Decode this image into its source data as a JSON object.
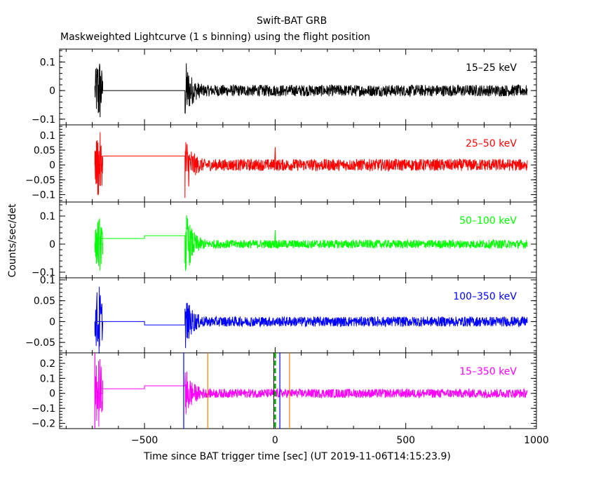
{
  "header": {
    "title": "Swift-BAT GRB",
    "subtitle": "Maskweighted Lightcurve (1 s binning) using the flight position"
  },
  "axes": {
    "ylabel": "Counts/sec/det",
    "xlabel": "Time since BAT trigger time [sec] (UT 2019-11-06T14:15:23.9)"
  },
  "colors": {
    "black": "#000000",
    "red": "#ff0000",
    "green": "#00ff00",
    "blue": "#0000ff",
    "magenta": "#ff00ff",
    "orange": "#ff8000",
    "dashed": "#00aa00"
  },
  "chart_data": {
    "type": "line",
    "binning_sec": 1,
    "xlim": [
      -825,
      1000
    ],
    "x_ticks": [
      -500,
      0,
      500,
      1000
    ],
    "x_tick_labels": [
      "−500",
      "0",
      "500",
      "1000"
    ],
    "grid": false,
    "panels": [
      {
        "name": "15–25 keV",
        "color": "#000000",
        "ylim": [
          -0.12,
          0.145
        ],
        "y_ticks": [
          -0.1,
          0,
          0.1
        ],
        "y_tick_labels": [
          "−0.1",
          "0",
          "0.1"
        ],
        "series": {
          "start": -770,
          "end": 965,
          "baseline": [
            [
              -770,
              0
            ],
            [
              -680,
              0
            ],
            [
              -345,
              0
            ]
          ],
          "burst1": {
            "t0": -690,
            "t1": -660,
            "amp": 0.13
          },
          "onset": -345,
          "peak_amp": 0.12,
          "decay_to": 0.015,
          "noise_amp": 0.02
        }
      },
      {
        "name": "25–50 keV",
        "color": "#ff0000",
        "ylim": [
          -0.125,
          0.135
        ],
        "y_ticks": [
          -0.1,
          -0.05,
          0,
          0.05,
          0.1
        ],
        "y_tick_labels": [
          "−0.1",
          "−0.05",
          "0",
          "0.05",
          "0.1"
        ],
        "series": {
          "start": -770,
          "end": 965,
          "baseline": [
            [
              -770,
              0
            ],
            [
              -680,
              0.03
            ],
            [
              -500,
              0.03
            ],
            [
              -345,
              0.03
            ]
          ],
          "burst1": {
            "t0": -690,
            "t1": -660,
            "amp": 0.12
          },
          "onset": -345,
          "peak_amp": 0.12,
          "decay_to": 0.015,
          "noise_amp": 0.02,
          "spike": {
            "t": 0,
            "value": 0.06
          }
        }
      },
      {
        "name": "50–100 keV",
        "color": "#00ff00",
        "ylim": [
          -0.12,
          0.15
        ],
        "y_ticks": [
          -0.1,
          0,
          0.1
        ],
        "y_tick_labels": [
          "−0.1",
          "0",
          "0.1"
        ],
        "series": {
          "start": -770,
          "end": 965,
          "baseline": [
            [
              -770,
              0
            ],
            [
              -680,
              0.02
            ],
            [
              -500,
              0.03
            ],
            [
              -345,
              0.03
            ]
          ],
          "burst1": {
            "t0": -690,
            "t1": -660,
            "amp": 0.1
          },
          "onset": -345,
          "peak_amp": 0.14,
          "decay_to": 0.012,
          "noise_amp": 0.015,
          "spike": {
            "t": 0,
            "value": 0.05
          }
        }
      },
      {
        "name": "100–350 keV",
        "color": "#0000ff",
        "ylim": [
          -0.075,
          0.105
        ],
        "y_ticks": [
          -0.05,
          0,
          0.05,
          0.1
        ],
        "y_tick_labels": [
          "−0.05",
          "0",
          "0.05",
          "0.1"
        ],
        "series": {
          "start": -770,
          "end": 965,
          "baseline": [
            [
              -770,
              0
            ],
            [
              -680,
              0
            ],
            [
              -500,
              -0.008
            ],
            [
              -345,
              -0.008
            ]
          ],
          "burst1": {
            "t0": -690,
            "t1": -660,
            "amp": 0.09
          },
          "onset": -345,
          "peak_amp": 0.07,
          "decay_to": 0.01,
          "noise_amp": 0.012
        }
      },
      {
        "name": "15–350 keV",
        "color": "#ff00ff",
        "ylim": [
          -0.235,
          0.27
        ],
        "y_ticks": [
          -0.2,
          -0.1,
          0,
          0.1,
          0.2
        ],
        "y_tick_labels": [
          "−0.2",
          "−0.1",
          "0",
          "0.1",
          "0.2"
        ],
        "series": {
          "start": -770,
          "end": 965,
          "baseline": [
            [
              -770,
              0
            ],
            [
              -680,
              0.03
            ],
            [
              -500,
              0.05
            ],
            [
              -345,
              0.05
            ]
          ],
          "burst1": {
            "t0": -690,
            "t1": -660,
            "amp": 0.25
          },
          "onset": -345,
          "peak_amp": 0.2,
          "decay_to": 0.025,
          "noise_amp": 0.03
        },
        "markers": [
          {
            "t": -690,
            "color": "#ff00ff",
            "style": "solid"
          },
          {
            "t": -350,
            "color": "#0000ff",
            "style": "solid"
          },
          {
            "t": -258,
            "color": "#ff8000",
            "style": "solid"
          },
          {
            "t": 0,
            "color": "#00aa00",
            "style": "dashed"
          },
          {
            "t": 18,
            "color": "#0000ff",
            "style": "solid"
          },
          {
            "t": 55,
            "color": "#ff8000",
            "style": "solid"
          }
        ]
      }
    ]
  }
}
